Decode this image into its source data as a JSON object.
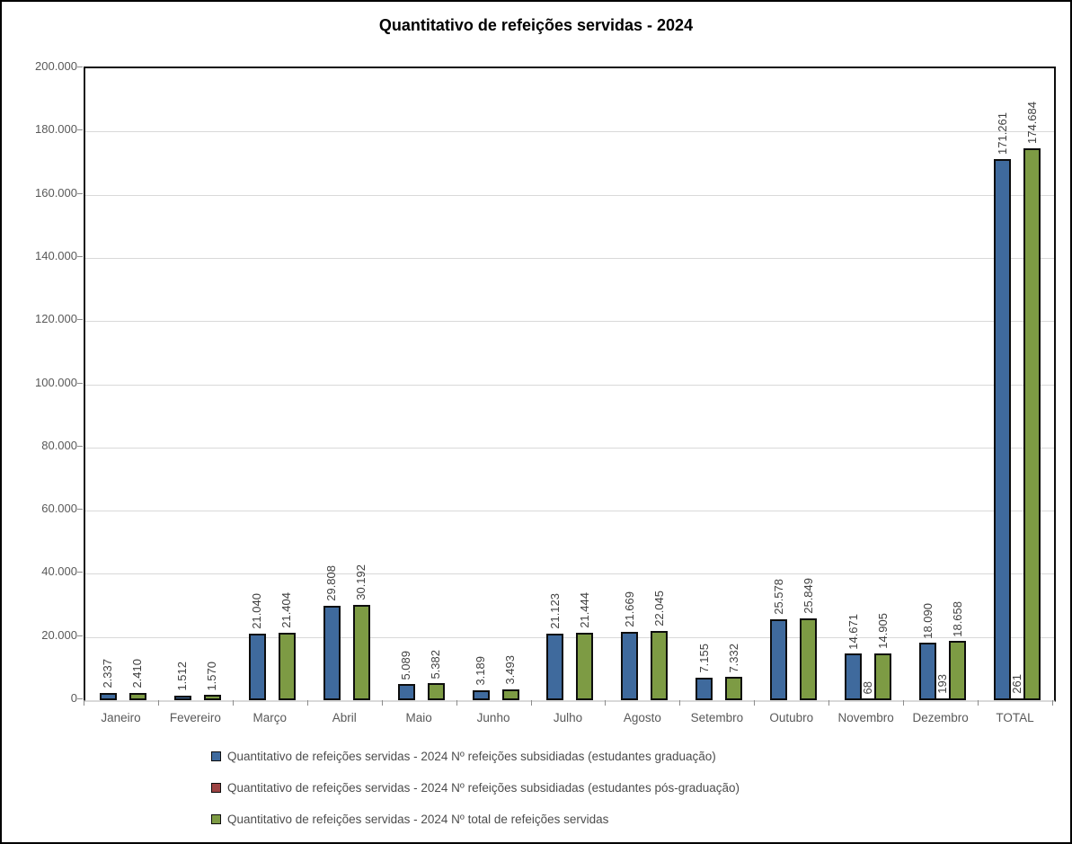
{
  "chart_data": {
    "type": "bar",
    "title": "Quantitativo de refeições servidas - 2024",
    "categories": [
      "Janeiro",
      "Fevereiro",
      "Março",
      "Abril",
      "Maio",
      "Junho",
      "Julho",
      "Agosto",
      "Setembro",
      "Outubro",
      "Novembro",
      "Dezembro",
      "TOTAL"
    ],
    "series": [
      {
        "name": "Quantitativo de refeições servidas - 2024 Nº refeições subsidiadas (estudantes graduação)",
        "color": "#3F6A9D",
        "values": [
          2337,
          1512,
          21040,
          29808,
          5089,
          3189,
          21123,
          21669,
          7155,
          25578,
          14671,
          18090,
          171261
        ]
      },
      {
        "name": "Quantitativo de refeições servidas - 2024 Nº refeições subsidiadas (estudantes pós-graduação)",
        "color": "#9C4242",
        "values": [
          null,
          null,
          null,
          null,
          null,
          null,
          null,
          null,
          null,
          null,
          68,
          193,
          261
        ]
      },
      {
        "name": "Quantitativo de refeições servidas - 2024 Nº total de refeições servidas",
        "color": "#7D9B44",
        "values": [
          2410,
          1570,
          21404,
          30192,
          5382,
          3493,
          21444,
          22045,
          7332,
          25849,
          14905,
          18658,
          174684
        ]
      }
    ],
    "ylim": [
      0,
      200000
    ],
    "ytick_step": 20000,
    "ytick_labels": [
      "0",
      "20.000",
      "40.000",
      "60.000",
      "80.000",
      "100.000",
      "120.000",
      "140.000",
      "160.000",
      "180.000",
      "200.000"
    ],
    "grid": true,
    "legend_position": "bottom-left",
    "bar_value_labels_rotated": true,
    "thousands_separator": "."
  }
}
